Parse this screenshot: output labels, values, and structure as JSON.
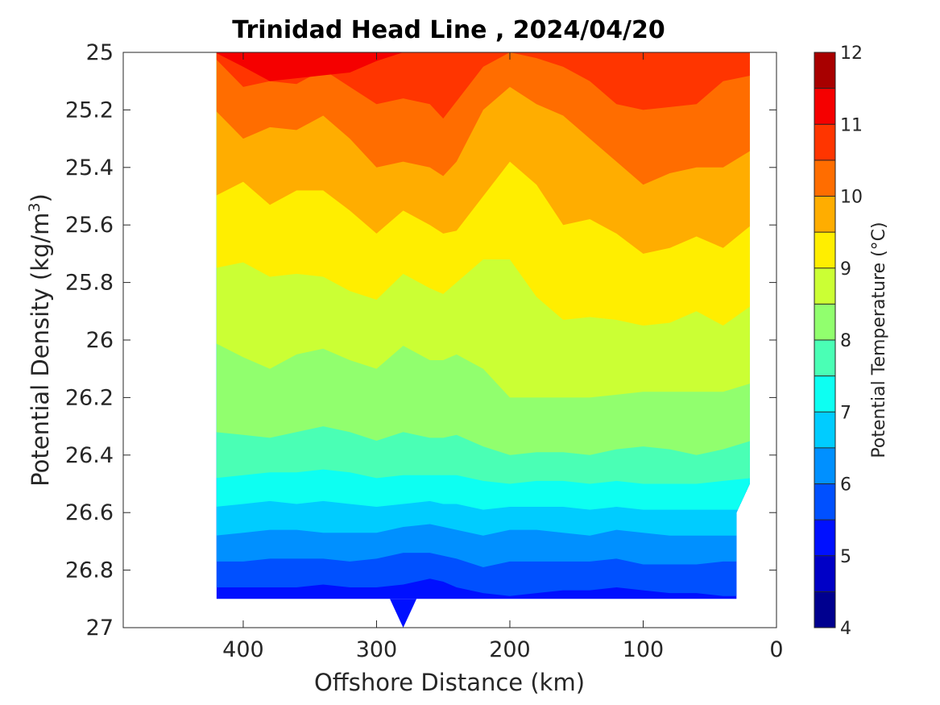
{
  "chart_data": {
    "type": "contourf",
    "title": "Trinidad Head Line , 2024/04/20",
    "xlabel": "Offshore Distance (km)",
    "ylabel_main": "Potential Density (kg/m",
    "ylabel_sup": "3",
    "ylabel_close": ")",
    "colorbar_label": "Potential Temperature (°C)",
    "x_axis": {
      "reversed": true,
      "min": 0,
      "max": 490,
      "ticks": [
        400,
        300,
        200,
        100,
        0
      ],
      "tick_labels": [
        "400",
        "300",
        "200",
        "100",
        "0"
      ]
    },
    "y_axis": {
      "reversed": true,
      "min": 25,
      "max": 27,
      "ticks": [
        25,
        25.2,
        25.4,
        25.6,
        25.8,
        26,
        26.2,
        26.4,
        26.6,
        26.8,
        27
      ],
      "tick_labels": [
        "25",
        "25.2",
        "25.4",
        "25.6",
        "25.8",
        "26",
        "26.2",
        "26.4",
        "26.6",
        "26.8",
        "27"
      ]
    },
    "colorbar": {
      "min": 4,
      "max": 12,
      "step": 0.5,
      "tick_values": [
        4,
        5,
        6,
        7,
        8,
        9,
        10,
        11,
        12
      ],
      "tick_labels": [
        "4",
        "5",
        "6",
        "7",
        "8",
        "9",
        "10",
        "11",
        "12"
      ],
      "level_colors": [
        "#00008f",
        "#0000c6",
        "#0010ff",
        "#0050ff",
        "#0090ff",
        "#00ccff",
        "#0dfff2",
        "#4affb5",
        "#91ff6e",
        "#cbff34",
        "#ffee00",
        "#ffad00",
        "#ff6d00",
        "#ff3500",
        "#f50000",
        "#a80000"
      ]
    },
    "data_extent": {
      "x_min": 20,
      "x_max": 420,
      "y_top": 25,
      "y_bottom": 26.9
    },
    "isotherms": [
      {
        "temp": 11.0,
        "x": [
          420,
          400,
          380,
          360,
          340,
          320,
          300,
          280,
          260,
          250,
          240,
          220,
          200,
          180,
          160,
          140,
          120,
          100,
          80,
          60,
          40,
          20
        ],
        "y": [
          25.0,
          25.05,
          25.1,
          25.09,
          25.08,
          25.07,
          25.03,
          25.0,
          25.0,
          25.0,
          25.0,
          25.0,
          25.0,
          25.0,
          25.0,
          25.0,
          25.0,
          25.0,
          25.0,
          25.0,
          25.0,
          25.0
        ]
      },
      {
        "temp": 10.5,
        "x": [
          420,
          400,
          380,
          360,
          340,
          320,
          300,
          280,
          260,
          250,
          240,
          220,
          200,
          180,
          160,
          140,
          120,
          100,
          80,
          60,
          40,
          20
        ],
        "y": [
          25.02,
          25.12,
          25.1,
          25.11,
          25.06,
          25.12,
          25.18,
          25.16,
          25.18,
          25.23,
          25.17,
          25.05,
          25.0,
          25.02,
          25.05,
          25.1,
          25.18,
          25.2,
          25.19,
          25.18,
          25.1,
          25.08
        ]
      },
      {
        "temp": 10.0,
        "x": [
          420,
          400,
          380,
          360,
          340,
          320,
          300,
          280,
          260,
          250,
          240,
          220,
          200,
          180,
          160,
          140,
          120,
          100,
          80,
          60,
          40,
          20
        ],
        "y": [
          25.2,
          25.3,
          25.26,
          25.27,
          25.22,
          25.3,
          25.4,
          25.38,
          25.4,
          25.43,
          25.38,
          25.2,
          25.12,
          25.18,
          25.22,
          25.3,
          25.38,
          25.46,
          25.42,
          25.4,
          25.4,
          25.34
        ]
      },
      {
        "temp": 9.5,
        "x": [
          420,
          400,
          380,
          360,
          340,
          320,
          300,
          280,
          260,
          250,
          240,
          220,
          200,
          180,
          160,
          140,
          120,
          100,
          80,
          60,
          40,
          20
        ],
        "y": [
          25.5,
          25.45,
          25.53,
          25.48,
          25.48,
          25.55,
          25.63,
          25.55,
          25.6,
          25.63,
          25.62,
          25.5,
          25.38,
          25.46,
          25.6,
          25.58,
          25.63,
          25.7,
          25.68,
          25.64,
          25.68,
          25.6
        ]
      },
      {
        "temp": 9.0,
        "x": [
          420,
          400,
          380,
          360,
          340,
          320,
          300,
          280,
          260,
          250,
          240,
          220,
          200,
          180,
          160,
          140,
          120,
          100,
          80,
          60,
          40,
          20
        ],
        "y": [
          25.75,
          25.73,
          25.78,
          25.77,
          25.78,
          25.83,
          25.86,
          25.77,
          25.82,
          25.84,
          25.8,
          25.72,
          25.72,
          25.85,
          25.93,
          25.92,
          25.93,
          25.95,
          25.94,
          25.9,
          25.95,
          25.88
        ]
      },
      {
        "temp": 8.5,
        "x": [
          420,
          400,
          380,
          360,
          340,
          320,
          300,
          280,
          260,
          250,
          240,
          220,
          200,
          180,
          160,
          140,
          120,
          100,
          80,
          60,
          40,
          20
        ],
        "y": [
          26.01,
          26.06,
          26.1,
          26.05,
          26.03,
          26.07,
          26.1,
          26.02,
          26.07,
          26.07,
          26.05,
          26.1,
          26.2,
          26.2,
          26.2,
          26.2,
          26.19,
          26.18,
          26.18,
          26.18,
          26.18,
          26.15
        ]
      },
      {
        "temp": 8.0,
        "x": [
          420,
          400,
          380,
          360,
          340,
          320,
          300,
          280,
          260,
          250,
          240,
          220,
          200,
          180,
          160,
          140,
          120,
          100,
          80,
          60,
          40,
          20
        ],
        "y": [
          26.32,
          26.33,
          26.34,
          26.32,
          26.3,
          26.32,
          26.35,
          26.32,
          26.34,
          26.34,
          26.33,
          26.37,
          26.4,
          26.39,
          26.39,
          26.4,
          26.38,
          26.37,
          26.38,
          26.4,
          26.38,
          26.35
        ]
      },
      {
        "temp": 7.5,
        "x": [
          420,
          400,
          380,
          360,
          340,
          320,
          300,
          280,
          260,
          250,
          240,
          220,
          200,
          180,
          160,
          140,
          120,
          100,
          80,
          60,
          40,
          20
        ],
        "y": [
          26.48,
          26.47,
          26.46,
          26.46,
          26.45,
          26.46,
          26.48,
          26.47,
          26.47,
          26.47,
          26.47,
          26.49,
          26.5,
          26.49,
          26.49,
          26.5,
          26.49,
          26.5,
          26.5,
          26.5,
          26.49,
          26.48
        ]
      },
      {
        "temp": 7.0,
        "x": [
          420,
          400,
          380,
          360,
          340,
          320,
          300,
          280,
          260,
          250,
          240,
          220,
          200,
          180,
          160,
          140,
          120,
          100,
          80,
          60,
          40,
          20
        ],
        "y": [
          26.58,
          26.57,
          26.56,
          26.57,
          26.56,
          26.57,
          26.58,
          26.57,
          26.56,
          26.57,
          26.57,
          26.59,
          26.58,
          26.58,
          26.58,
          26.59,
          26.58,
          26.59,
          26.59,
          26.59,
          26.59,
          26.59
        ]
      },
      {
        "temp": 6.5,
        "x": [
          420,
          400,
          380,
          360,
          340,
          320,
          300,
          280,
          260,
          250,
          240,
          220,
          200,
          180,
          160,
          140,
          120,
          100,
          80,
          60,
          40,
          20
        ],
        "y": [
          26.68,
          26.67,
          26.66,
          26.66,
          26.67,
          26.67,
          26.67,
          26.65,
          26.64,
          26.65,
          26.66,
          26.68,
          26.66,
          26.66,
          26.67,
          26.68,
          26.66,
          26.67,
          26.68,
          26.68,
          26.68,
          26.68
        ]
      },
      {
        "temp": 6.0,
        "x": [
          420,
          400,
          380,
          360,
          340,
          320,
          300,
          280,
          260,
          250,
          240,
          220,
          200,
          180,
          160,
          140,
          120,
          100,
          80,
          60,
          40,
          20
        ],
        "y": [
          26.77,
          26.77,
          26.76,
          26.76,
          26.76,
          26.77,
          26.76,
          26.74,
          26.74,
          26.75,
          26.76,
          26.79,
          26.77,
          26.77,
          26.77,
          26.77,
          26.76,
          26.78,
          26.78,
          26.78,
          26.77,
          26.77
        ]
      },
      {
        "temp": 5.5,
        "x": [
          420,
          400,
          380,
          360,
          340,
          320,
          300,
          280,
          260,
          250,
          240,
          220,
          200,
          180,
          160,
          140,
          120,
          100,
          80,
          60,
          40,
          20
        ],
        "y": [
          26.86,
          26.86,
          26.86,
          26.86,
          26.85,
          26.86,
          26.86,
          26.85,
          26.83,
          26.84,
          26.86,
          26.88,
          26.89,
          26.88,
          26.87,
          26.87,
          26.86,
          26.87,
          26.88,
          26.88,
          26.89,
          26.89
        ]
      }
    ]
  }
}
